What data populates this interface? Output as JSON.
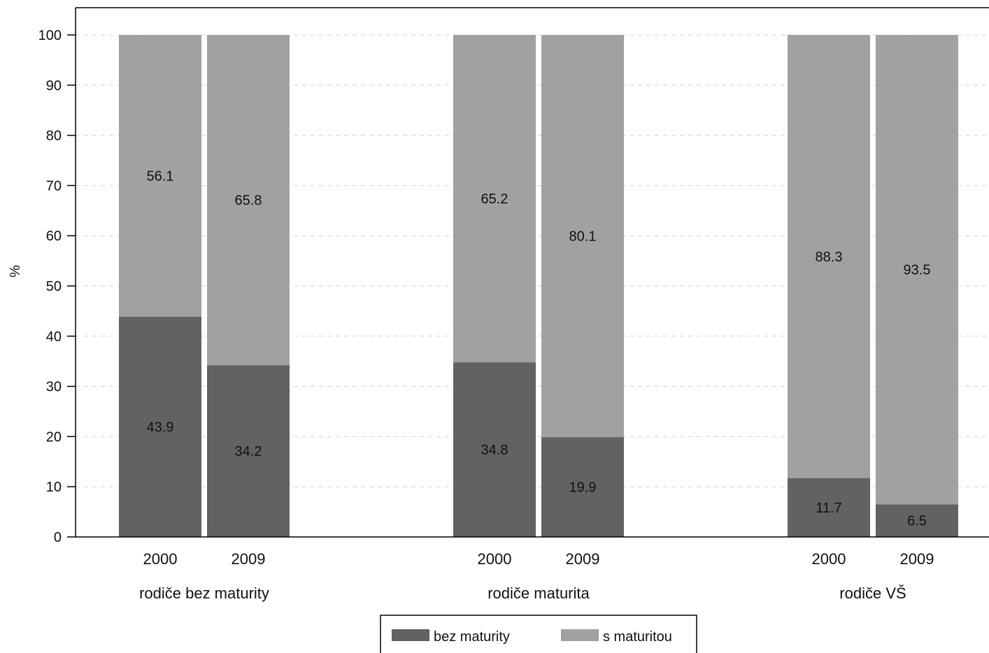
{
  "chart_data": {
    "type": "bar",
    "stacked": true,
    "ylabel": "%",
    "ylim": [
      0,
      100
    ],
    "yticks": [
      0,
      10,
      20,
      30,
      40,
      50,
      60,
      70,
      80,
      90,
      100
    ],
    "grid": true,
    "legend_position": "bottom",
    "groups": [
      {
        "name": "rodiče bez maturity",
        "bars": [
          {
            "x": "2000",
            "values": [
              43.9,
              56.1
            ]
          },
          {
            "x": "2009",
            "values": [
              34.2,
              65.8
            ]
          }
        ]
      },
      {
        "name": "rodiče maturita",
        "bars": [
          {
            "x": "2000",
            "values": [
              34.8,
              65.2
            ]
          },
          {
            "x": "2009",
            "values": [
              19.9,
              80.1
            ]
          }
        ]
      },
      {
        "name": "rodiče VŠ",
        "bars": [
          {
            "x": "2000",
            "values": [
              11.7,
              88.3
            ]
          },
          {
            "x": "2009",
            "values": [
              6.5,
              93.5
            ]
          }
        ]
      }
    ],
    "series": [
      {
        "name": "bez maturity",
        "color": "#626262"
      },
      {
        "name": "s maturitou",
        "color": "#a1a1a1"
      }
    ]
  }
}
